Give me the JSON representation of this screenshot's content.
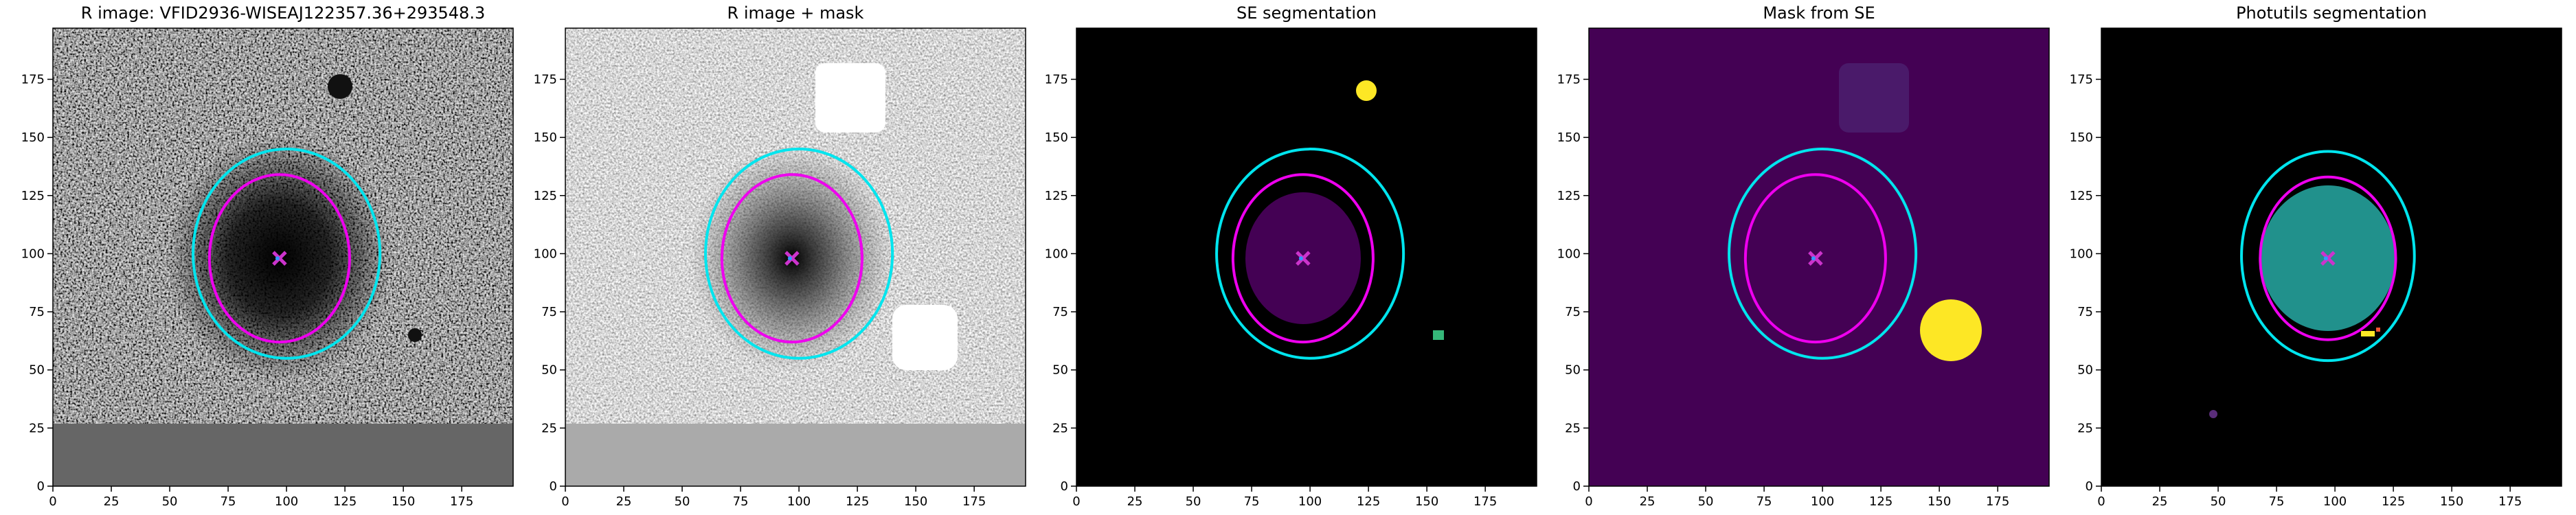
{
  "chart_data": [
    {
      "type": "image",
      "title": "R image: VFID2936-WISEAJ122357.36+293548.3",
      "xlim": [
        0,
        197
      ],
      "ylim": [
        0,
        197
      ],
      "xticks": [
        0,
        25,
        50,
        75,
        100,
        125,
        150,
        175
      ],
      "yticks": [
        0,
        25,
        50,
        75,
        100,
        125,
        150,
        175
      ],
      "ellipses": [
        {
          "cx": 100,
          "cy": 100,
          "rx": 40,
          "ry": 45,
          "color": "#00e5ee"
        },
        {
          "cx": 97,
          "cy": 98,
          "rx": 30,
          "ry": 36,
          "color": "#ee00ee"
        }
      ],
      "markers": [
        {
          "x": 97,
          "y": 98,
          "color": "#cc33cc"
        }
      ]
    },
    {
      "type": "image",
      "title": "R image + mask",
      "xlim": [
        0,
        197
      ],
      "ylim": [
        0,
        197
      ],
      "xticks": [
        0,
        25,
        50,
        75,
        100,
        125,
        150,
        175
      ],
      "yticks": [
        0,
        25,
        50,
        75,
        100,
        125,
        150,
        175
      ],
      "ellipses": [
        {
          "cx": 100,
          "cy": 100,
          "rx": 40,
          "ry": 45,
          "color": "#00e5ee"
        },
        {
          "cx": 97,
          "cy": 98,
          "rx": 30,
          "ry": 36,
          "color": "#ee00ee"
        }
      ],
      "markers": [
        {
          "x": 97,
          "y": 98,
          "color": "#cc33cc"
        }
      ]
    },
    {
      "type": "image",
      "title": "SE segmentation",
      "xlim": [
        0,
        197
      ],
      "ylim": [
        0,
        197
      ],
      "xticks": [
        0,
        25,
        50,
        75,
        100,
        125,
        150,
        175
      ],
      "yticks": [
        0,
        25,
        50,
        75,
        100,
        125,
        150,
        175
      ],
      "ellipses": [
        {
          "cx": 100,
          "cy": 100,
          "rx": 40,
          "ry": 45,
          "color": "#00e5ee"
        },
        {
          "cx": 97,
          "cy": 98,
          "rx": 30,
          "ry": 36,
          "color": "#ee00ee"
        }
      ],
      "markers": [
        {
          "x": 97,
          "y": 98,
          "color": "#cc33cc"
        }
      ]
    },
    {
      "type": "image",
      "title": "Mask from SE",
      "xlim": [
        0,
        197
      ],
      "ylim": [
        0,
        197
      ],
      "xticks": [
        0,
        25,
        50,
        75,
        100,
        125,
        150,
        175
      ],
      "yticks": [
        0,
        25,
        50,
        75,
        100,
        125,
        150,
        175
      ],
      "ellipses": [
        {
          "cx": 100,
          "cy": 100,
          "rx": 40,
          "ry": 45,
          "color": "#00e5ee"
        },
        {
          "cx": 97,
          "cy": 98,
          "rx": 30,
          "ry": 36,
          "color": "#ee00ee"
        }
      ],
      "markers": [
        {
          "x": 97,
          "y": 98,
          "color": "#cc33cc"
        }
      ]
    },
    {
      "type": "image",
      "title": "Photutils segmentation",
      "xlim": [
        0,
        197
      ],
      "ylim": [
        0,
        197
      ],
      "xticks": [
        0,
        25,
        50,
        75,
        100,
        125,
        150,
        175
      ],
      "yticks": [
        0,
        25,
        50,
        75,
        100,
        125,
        150,
        175
      ],
      "ellipses": [
        {
          "cx": 97,
          "cy": 99,
          "rx": 37,
          "ry": 45,
          "color": "#00e5ee"
        },
        {
          "cx": 97,
          "cy": 98,
          "rx": 29,
          "ry": 35,
          "color": "#ee00ee"
        }
      ],
      "markers": [
        {
          "x": 97,
          "y": 98,
          "color": "#cc33cc"
        }
      ]
    }
  ]
}
